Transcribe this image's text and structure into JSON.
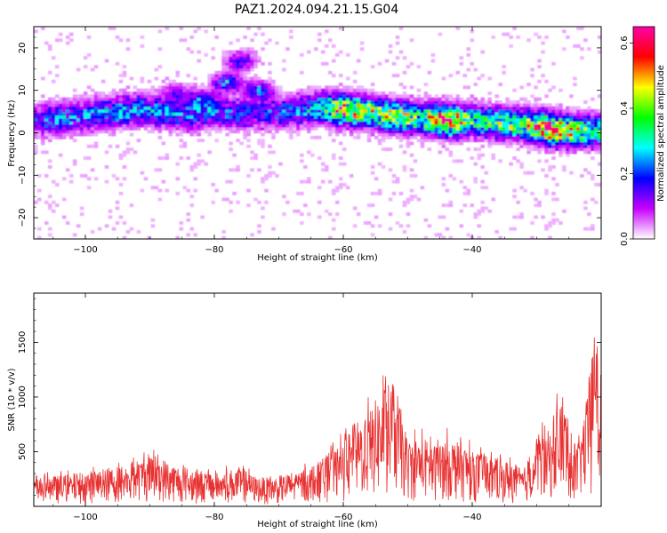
{
  "figure_title": "PAZ1.2024.094.21.15.G04",
  "chart_data": [
    {
      "type": "heatmap",
      "xlabel": "Height of straight line (km)",
      "ylabel": "Frequency (Hz)",
      "xlim": [
        -108,
        -20
      ],
      "ylim": [
        -25,
        25
      ],
      "x_ticks": [
        -100,
        -80,
        -60,
        -40
      ],
      "y_ticks": [
        -20,
        -10,
        0,
        10,
        20
      ],
      "colorbar": {
        "label": "Normalized spectral amplitude",
        "range": [
          0.0,
          0.65
        ],
        "ticks": [
          0.0,
          0.2,
          0.4,
          0.6
        ],
        "colors": [
          "#ffffff",
          "#c800ff",
          "#0000ff",
          "#00ffff",
          "#00ff00",
          "#ffff00",
          "#ff0000",
          "#ff00aa"
        ]
      },
      "band": [
        {
          "x": -108,
          "f": 3.0,
          "amp": 0.14
        },
        {
          "x": -104,
          "f": 3.5,
          "amp": 0.22
        },
        {
          "x": -100,
          "f": 4.0,
          "amp": 0.2
        },
        {
          "x": -96,
          "f": 5.0,
          "amp": 0.23
        },
        {
          "x": -92,
          "f": 5.5,
          "amp": 0.24
        },
        {
          "x": -88,
          "f": 5.0,
          "amp": 0.22
        },
        {
          "x": -84,
          "f": 4.5,
          "amp": 0.22
        },
        {
          "x": -80,
          "f": 5.0,
          "amp": 0.2
        },
        {
          "x": -76,
          "f": 4.5,
          "amp": 0.18
        },
        {
          "x": -72,
          "f": 4.5,
          "amp": 0.16
        },
        {
          "x": -68,
          "f": 5.0,
          "amp": 0.2
        },
        {
          "x": -64,
          "f": 6.0,
          "amp": 0.24
        },
        {
          "x": -60,
          "f": 5.5,
          "amp": 0.48
        },
        {
          "x": -56,
          "f": 5.0,
          "amp": 0.38
        },
        {
          "x": -52,
          "f": 4.0,
          "amp": 0.4
        },
        {
          "x": -48,
          "f": 3.5,
          "amp": 0.32
        },
        {
          "x": -44,
          "f": 3.0,
          "amp": 0.58
        },
        {
          "x": -40,
          "f": 3.0,
          "amp": 0.3
        },
        {
          "x": -36,
          "f": 2.5,
          "amp": 0.34
        },
        {
          "x": -32,
          "f": 2.0,
          "amp": 0.38
        },
        {
          "x": -28,
          "f": 1.0,
          "amp": 0.56
        },
        {
          "x": -24,
          "f": 0.5,
          "amp": 0.4
        },
        {
          "x": -20,
          "f": 0.5,
          "amp": 0.3
        }
      ],
      "features": [
        {
          "x": -76,
          "f": 17,
          "amp": 0.18
        },
        {
          "x": -78,
          "f": 12,
          "amp": 0.22
        },
        {
          "x": -73,
          "f": 10,
          "amp": 0.2
        },
        {
          "x": -82,
          "f": 8,
          "amp": 0.12
        },
        {
          "x": -86,
          "f": 10,
          "amp": 0.1
        }
      ]
    },
    {
      "type": "line",
      "xlabel": "Height of straight line (km)",
      "ylabel": "SNR (10 * v/v)",
      "xlim": [
        -108,
        -20
      ],
      "ylim": [
        0,
        1950
      ],
      "x_ticks": [
        -100,
        -80,
        -60,
        -40
      ],
      "y_ticks": [
        500,
        1000,
        1500
      ],
      "line_color": "#e83030",
      "series": [
        {
          "x": [
            -108,
            -106,
            -104,
            -102,
            -100,
            -98,
            -96,
            -94,
            -92,
            -90,
            -88,
            -86,
            -84,
            -82,
            -80,
            -78,
            -76,
            -74,
            -72,
            -70,
            -68,
            -66,
            -64,
            -62,
            -60,
            -58,
            -56,
            -54,
            -52,
            -50,
            -48,
            -46,
            -44,
            -42,
            -40,
            -38,
            -36,
            -34,
            -32,
            -30,
            -28,
            -26,
            -24,
            -22,
            -21,
            -20
          ],
          "y": [
            250,
            270,
            280,
            300,
            320,
            330,
            360,
            380,
            420,
            470,
            440,
            380,
            360,
            330,
            300,
            330,
            360,
            280,
            260,
            280,
            300,
            350,
            400,
            500,
            600,
            760,
            900,
            1050,
            1150,
            600,
            650,
            560,
            640,
            590,
            520,
            470,
            430,
            410,
            340,
            650,
            700,
            1050,
            500,
            1050,
            1650,
            1100
          ]
        }
      ]
    }
  ]
}
